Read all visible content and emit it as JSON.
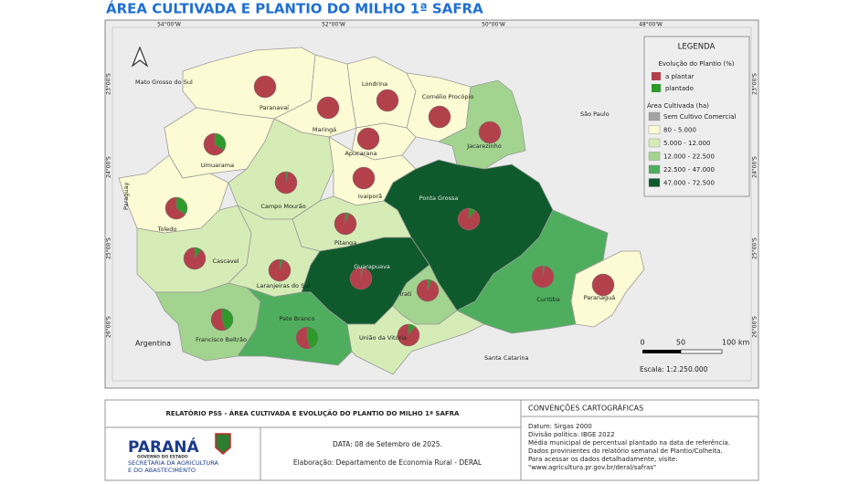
{
  "title": "ÁREA CULTIVADA E PLANTIO DO MILHO 1ª SAFRA",
  "map": {
    "type": "pie-map",
    "lon_labels": [
      "54°00'W",
      "52°00'W",
      "50°00'W",
      "48°00'W"
    ],
    "lat_labels": [
      "23°00'S",
      "24°00'S",
      "25°00'S",
      "26°00'S"
    ],
    "neighbors": [
      "Mato Grosso do Sul",
      "São Paulo",
      "Paraguay",
      "Argentina",
      "Santa Catarina"
    ],
    "regions": [
      {
        "name": "Paranavaí",
        "area_class": 1,
        "to_plant": 100,
        "planted": 0
      },
      {
        "name": "Maringá",
        "area_class": 1,
        "to_plant": 100,
        "planted": 0
      },
      {
        "name": "Londrina",
        "area_class": 1,
        "to_plant": 100,
        "planted": 0
      },
      {
        "name": "Cornélio Procópio",
        "area_class": 1,
        "to_plant": 100,
        "planted": 0
      },
      {
        "name": "Jacarezinho",
        "area_class": 3,
        "to_plant": 100,
        "planted": 0
      },
      {
        "name": "Apucarana",
        "area_class": 1,
        "to_plant": 100,
        "planted": 0
      },
      {
        "name": "Umuarama",
        "area_class": 1,
        "to_plant": 65,
        "planted": 35
      },
      {
        "name": "Campo Mourão",
        "area_class": 2,
        "to_plant": 97,
        "planted": 3
      },
      {
        "name": "Ivaiporã",
        "area_class": 1,
        "to_plant": 100,
        "planted": 0
      },
      {
        "name": "Toledo",
        "area_class": 1,
        "to_plant": 65,
        "planted": 35
      },
      {
        "name": "Ponta Grossa",
        "area_class": 5,
        "to_plant": 90,
        "planted": 10
      },
      {
        "name": "Pitanga",
        "area_class": 2,
        "to_plant": 95,
        "planted": 5
      },
      {
        "name": "Cascavel",
        "area_class": 2,
        "to_plant": 90,
        "planted": 10
      },
      {
        "name": "Laranjeiras do Sul",
        "area_class": 2,
        "to_plant": 95,
        "planted": 5
      },
      {
        "name": "Guarapuava",
        "area_class": 5,
        "to_plant": 97,
        "planted": 3
      },
      {
        "name": "Irati",
        "area_class": 3,
        "to_plant": 95,
        "planted": 5
      },
      {
        "name": "Curitiba",
        "area_class": 4,
        "to_plant": 97,
        "planted": 3
      },
      {
        "name": "Paranaguá",
        "area_class": 1,
        "to_plant": 100,
        "planted": 0
      },
      {
        "name": "Francisco Beltrão",
        "area_class": 3,
        "to_plant": 55,
        "planted": 45
      },
      {
        "name": "Pato Branco",
        "area_class": 4,
        "to_plant": 55,
        "planted": 45
      },
      {
        "name": "União da Vitória",
        "area_class": 2,
        "to_plant": 90,
        "planted": 10
      }
    ],
    "legend": {
      "title": "LEGENDA",
      "pie_title": "Evolução do Plantio (%)",
      "pie_series": [
        {
          "name": "a plantar",
          "color": "#b3414c"
        },
        {
          "name": "plantado",
          "color": "#2e9a2a"
        }
      ],
      "area_title": "Área Cultivada (ha)",
      "classes": [
        {
          "label": "Sem Cultivo Comercial",
          "color": "#a3a3a3"
        },
        {
          "label": "80 - 5.000",
          "color": "#fdfbd4"
        },
        {
          "label": "5.000 - 12.000",
          "color": "#d6ecb6"
        },
        {
          "label": "12.000 - 22.500",
          "color": "#a2d48f"
        },
        {
          "label": "22.500 - 47.000",
          "color": "#4fae5e"
        },
        {
          "label": "47.000 - 72.500",
          "color": "#0f5a2c"
        }
      ]
    },
    "scale": {
      "ticks": [
        "0",
        "50",
        "100 km"
      ],
      "label": "Escala: 1:2.250.000"
    }
  },
  "footer": {
    "report_title": "RELATÓRIO PSS - ÁREA CULTIVADA E EVOLUÇÃO DO PLANTIO DO MILHO 1ª SAFRA",
    "logo": [
      "PARANÁ",
      "GOVERNO DO ESTADO",
      "SECRETARIA DA AGRICULTURA",
      "E DO ABASTECIMENTO"
    ],
    "date": "DATA: 08 de Setembro de 2025.",
    "author": "Elaboração: Departamento de Economia Rural - DERAL",
    "conventions_title": "CONVENÇÕES CARTOGRÁFICAS",
    "conventions": [
      "Datum: Sirgas 2000",
      "Divisão política: IBGE 2022",
      "Média municipal de percentual plantado na data de referência.",
      "Dados provinientes do relatório semanal de Plantio/Colheita.",
      "Para acessar os dados detalhadamente, visite:",
      "\"www.agricultura.pr.gov.br/deral/safras\""
    ]
  }
}
